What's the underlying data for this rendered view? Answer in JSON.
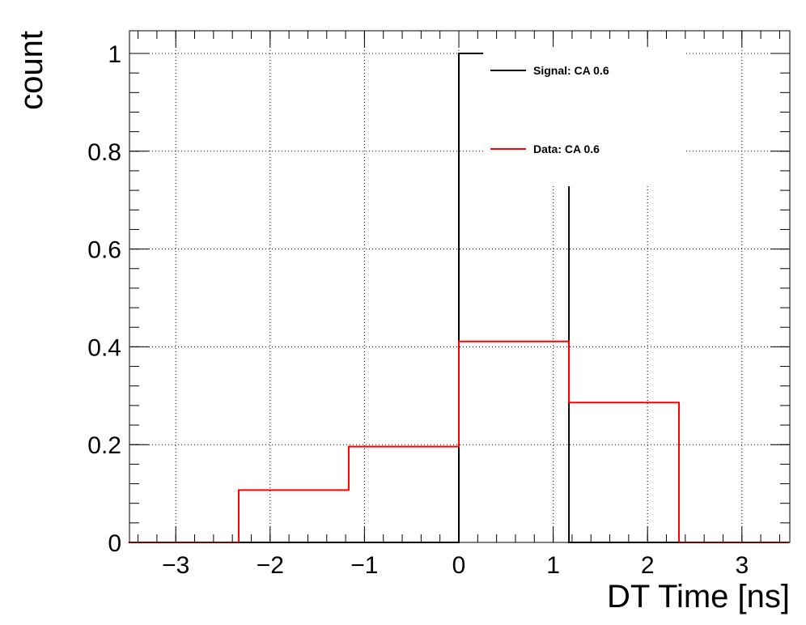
{
  "chart_data": {
    "type": "step-histogram",
    "xlabel": "DT Time [ns]",
    "ylabel": "count",
    "xlim": [
      -3.5,
      3.5
    ],
    "ylim": [
      0,
      1.05
    ],
    "grid": true,
    "legend_position": "top-right",
    "x_ticks": [
      -3,
      -2,
      -1,
      0,
      1,
      2,
      3
    ],
    "x_tick_labels": [
      "−3",
      "−2",
      "−1",
      "0",
      "1",
      "2",
      "3"
    ],
    "y_ticks": [
      0,
      0.2,
      0.4,
      0.6,
      0.8,
      1
    ],
    "y_tick_labels": [
      "0",
      "0.2",
      "0.4",
      "0.6",
      "0.8",
      "1"
    ],
    "bin_edges": [
      -3.5,
      -2.333,
      -1.167,
      0,
      1.167,
      2.333,
      3.5
    ],
    "series": [
      {
        "name": "Signal: CA 0.6",
        "color": "#000000",
        "values": [
          0,
          0,
          0,
          1.0,
          0,
          0
        ]
      },
      {
        "name": "Data: CA 0.6",
        "color": "#ff0000",
        "values": [
          0,
          0.107,
          0.196,
          0.411,
          0.286,
          0
        ]
      }
    ]
  }
}
